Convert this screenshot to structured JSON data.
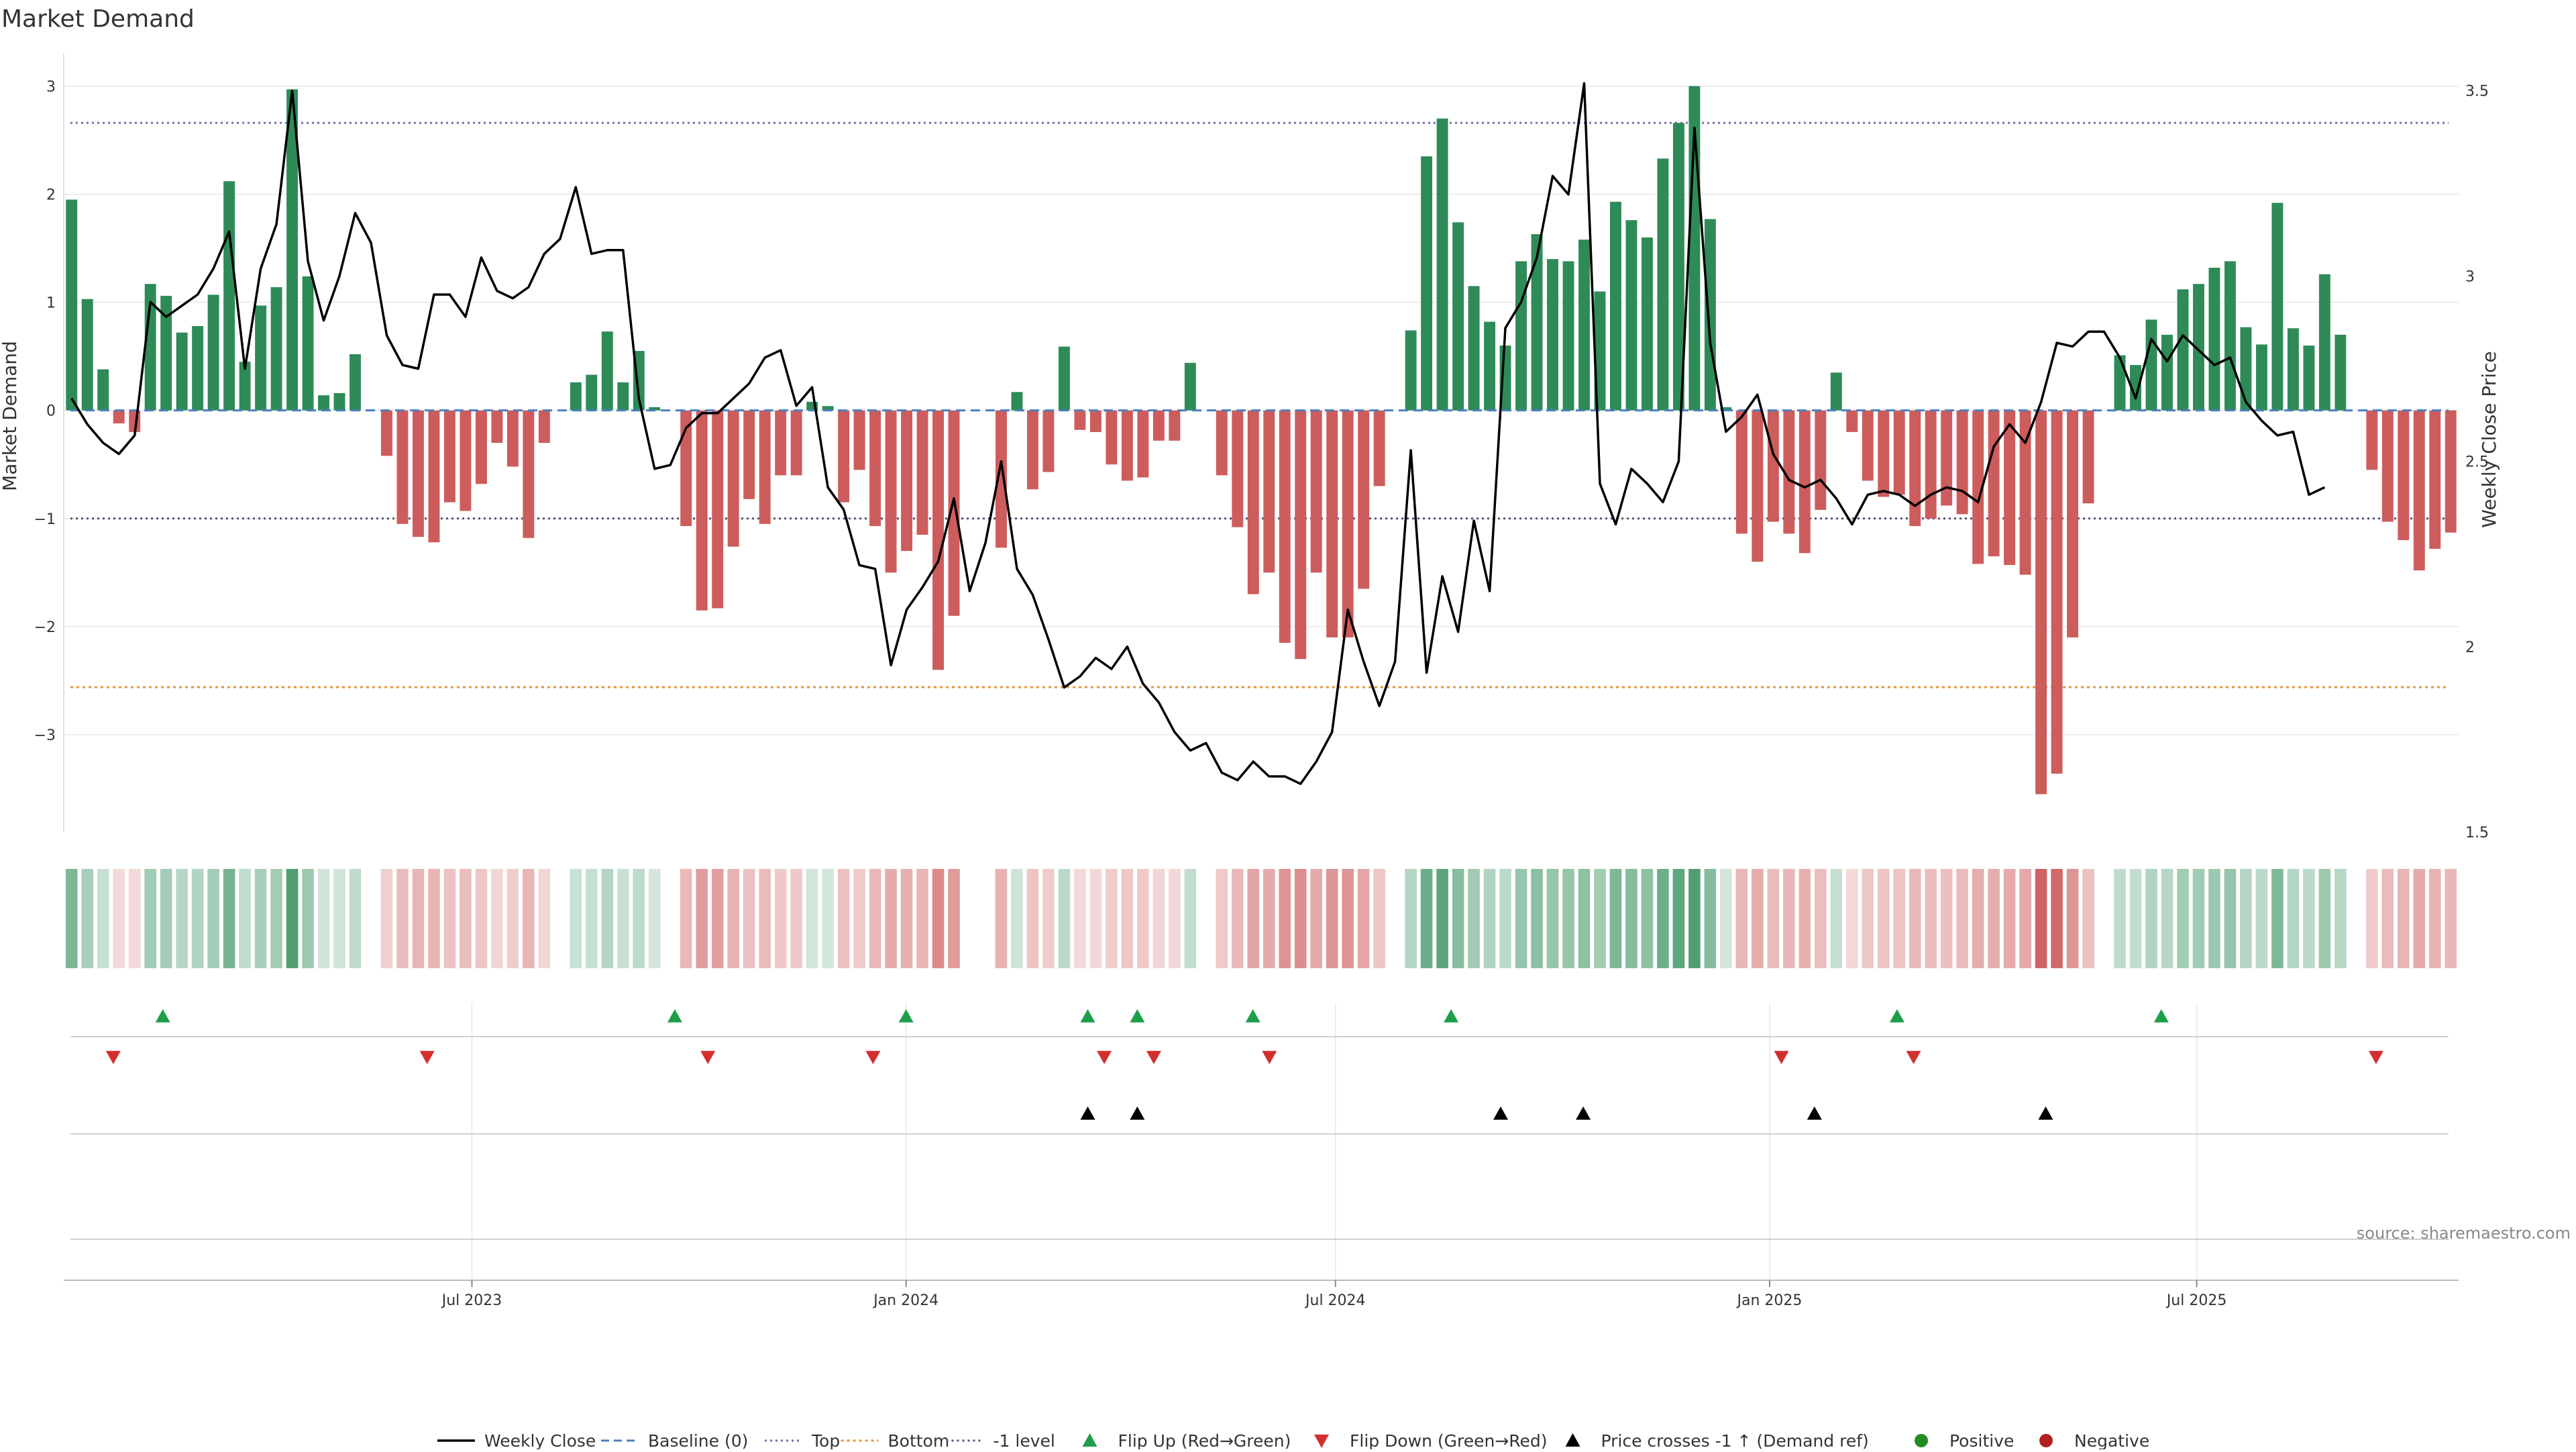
{
  "title": "Market Demand",
  "source": "source: sharemaestro.com",
  "colors": {
    "positive": "#2e8b57",
    "negative": "#cd5c5c",
    "close_line": "#000000",
    "baseline": "#4a7fc1",
    "top": "#7b68b0",
    "bottom": "#e8943a",
    "minus1": "#555577",
    "flip_up": "#1e9e4a",
    "flip_down": "#d32f2f",
    "cross": "#000000",
    "grid": "#e8e8e8",
    "legend_positive": "#228b22",
    "legend_negative": "#b22222"
  },
  "chart_data": {
    "type": "bar",
    "title": "Market Demand",
    "ylabel": "Market Demand",
    "y2label": "Weekly Close Price",
    "ylim": [
      -3.9,
      3.3
    ],
    "y2lim": [
      1.5,
      3.6
    ],
    "yticks": [
      3,
      2,
      1,
      0,
      -1,
      -2,
      -3
    ],
    "ytick_labels": [
      "3",
      "2",
      "1",
      "0",
      "−1",
      "−2",
      "−3"
    ],
    "y2ticks": [
      3.5,
      3,
      2.5,
      2,
      1.5
    ],
    "y2tick_labels": [
      "3.5",
      "3",
      "2.5",
      "2",
      "1.5"
    ],
    "x_start": "2023-01-09",
    "x_end": "2025-10-20",
    "xticks": [
      "2023-07-01",
      "2024-01-01",
      "2024-07-01",
      "2025-01-01",
      "2025-07-01"
    ],
    "xtick_labels": [
      "Jul 2023",
      "Jan 2024",
      "Jul 2024",
      "Jan 2025",
      "Jul 2025"
    ],
    "grid": true,
    "legend_position": "bottom-center",
    "reference_lines": {
      "baseline": 0,
      "top": 2.66,
      "bottom": -2.56,
      "minus1": -1
    },
    "demand": [
      1.95,
      1.03,
      0.38,
      -0.12,
      -0.2,
      1.17,
      1.06,
      0.72,
      0.78,
      1.07,
      2.12,
      0.45,
      0.97,
      1.14,
      2.97,
      1.24,
      0.14,
      0.16,
      0.52,
      0,
      -0.42,
      -1.05,
      -1.17,
      -1.22,
      -0.85,
      -0.93,
      -0.68,
      -0.3,
      -0.52,
      -1.18,
      -0.3,
      0,
      0.26,
      0.33,
      0.73,
      0.26,
      0.55,
      0.03,
      0,
      -1.07,
      -1.85,
      -1.83,
      -1.26,
      -0.82,
      -1.05,
      -0.6,
      -0.6,
      0.08,
      0.04,
      -0.85,
      -0.55,
      -1.07,
      -1.5,
      -1.3,
      -1.15,
      -2.4,
      -1.9,
      0,
      0,
      -1.27,
      0.17,
      -0.73,
      -0.57,
      0.59,
      -0.18,
      -0.2,
      -0.5,
      -0.65,
      -0.62,
      -0.28,
      -0.28,
      0.44,
      0,
      -0.6,
      -1.08,
      -1.7,
      -1.5,
      -2.15,
      -2.3,
      -1.5,
      -2.1,
      -2.1,
      -1.65,
      -0.7,
      0,
      0.74,
      2.35,
      2.7,
      1.74,
      1.15,
      0.82,
      0.6,
      1.38,
      1.63,
      1.4,
      1.38,
      1.58,
      1.1,
      1.93,
      1.76,
      1.6,
      2.33,
      2.66,
      3.0,
      1.77,
      0.03,
      -1.14,
      -1.4,
      -1.03,
      -1.14,
      -1.32,
      -0.92,
      0.35,
      -0.2,
      -0.65,
      -0.8,
      -0.78,
      -1.07,
      -1.0,
      -0.88,
      -0.96,
      -1.42,
      -1.35,
      -1.43,
      -1.52,
      -3.55,
      -3.36,
      -2.1,
      -0.86,
      0,
      0.51,
      0.42,
      0.84,
      0.7,
      1.12,
      1.17,
      1.32,
      1.38,
      0.77,
      0.61,
      1.92,
      0.76,
      0.6,
      1.26,
      0.7,
      0,
      -0.55,
      -1.03,
      -1.2,
      -1.48,
      -1.28,
      -1.13
    ],
    "weekly_close": [
      2.67,
      2.6,
      2.55,
      2.52,
      2.57,
      2.93,
      2.89,
      2.92,
      2.95,
      3.02,
      3.12,
      2.75,
      3.02,
      3.14,
      3.5,
      3.04,
      2.88,
      3.0,
      3.17,
      3.09,
      2.84,
      2.76,
      2.75,
      2.95,
      2.95,
      2.89,
      3.05,
      2.96,
      2.94,
      2.97,
      3.06,
      3.1,
      3.24,
      3.06,
      3.07,
      3.07,
      2.67,
      2.48,
      2.49,
      2.59,
      2.63,
      2.63,
      2.67,
      2.71,
      2.78,
      2.8,
      2.65,
      2.7,
      2.43,
      2.37,
      2.22,
      2.21,
      1.95,
      2.1,
      2.16,
      2.23,
      2.4,
      2.15,
      2.28,
      2.5,
      2.21,
      2.14,
      2.02,
      1.89,
      1.92,
      1.97,
      1.94,
      2.0,
      1.9,
      1.85,
      1.77,
      1.72,
      1.74,
      1.66,
      1.64,
      1.69,
      1.65,
      1.65,
      1.63,
      1.69,
      1.77,
      2.1,
      1.96,
      1.84,
      1.96,
      2.53,
      1.93,
      2.19,
      2.04,
      2.34,
      2.15,
      2.86,
      2.93,
      3.05,
      3.27,
      3.22,
      3.52,
      2.44,
      2.33,
      2.48,
      2.44,
      2.39,
      2.5,
      3.4,
      2.82,
      2.58,
      2.62,
      2.68,
      2.52,
      2.45,
      2.43,
      2.45,
      2.4,
      2.33,
      2.41,
      2.42,
      2.41,
      2.38,
      2.41,
      2.43,
      2.42,
      2.39,
      2.54,
      2.6,
      2.55,
      2.66,
      2.82,
      2.81,
      2.85,
      2.85,
      2.78,
      2.67,
      2.83,
      2.77,
      2.84,
      2.8,
      2.76,
      2.78,
      2.66,
      2.61,
      2.57,
      2.58,
      2.41,
      2.43
    ],
    "flip_up_dates": [
      "2023-02-20",
      "2023-09-25",
      "2024-01-01",
      "2024-03-18",
      "2024-04-08",
      "2024-05-27",
      "2024-08-19",
      "2025-02-24",
      "2025-06-16"
    ],
    "flip_down_dates": [
      "2023-01-30",
      "2023-06-12",
      "2023-10-09",
      "2023-12-18",
      "2024-03-25",
      "2024-04-15",
      "2024-06-03",
      "2025-01-06",
      "2025-03-03",
      "2025-09-15"
    ],
    "price_cross_dates": [
      "2024-03-18",
      "2024-04-08",
      "2024-09-09",
      "2024-10-14",
      "2025-01-20",
      "2025-04-28"
    ],
    "legend": [
      {
        "label": "Weekly Close",
        "kind": "line"
      },
      {
        "label": "Baseline (0)",
        "kind": "dash"
      },
      {
        "label": "Top",
        "kind": "dot-top"
      },
      {
        "label": "Bottom",
        "kind": "dot-bottom"
      },
      {
        "label": "-1 level",
        "kind": "dot-minus1"
      },
      {
        "label": "Flip Up (Red→Green)",
        "kind": "tri-up-green"
      },
      {
        "label": "Flip Down (Green→Red)",
        "kind": "tri-down-red"
      },
      {
        "label": "Price crosses -1 ↑ (Demand ref)",
        "kind": "tri-up-black"
      },
      {
        "label": "Positive",
        "kind": "dot-green"
      },
      {
        "label": "Negative",
        "kind": "dot-red"
      }
    ]
  }
}
